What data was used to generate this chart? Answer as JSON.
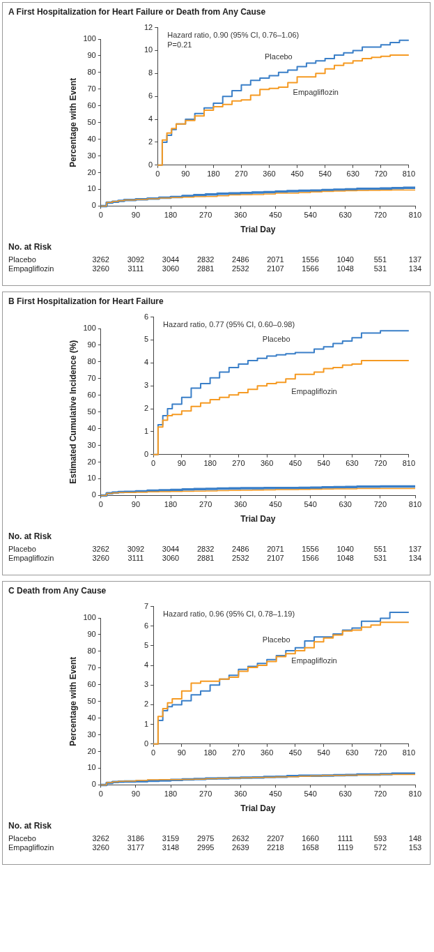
{
  "chart_data": [
    {
      "type": "step",
      "title": "A First Hospitalization for Heart Failure or Death from Any Cause",
      "xlabel": "Trial Day",
      "ylabel": "Percentage with Event",
      "xlim": [
        0,
        810
      ],
      "xticks": [
        0,
        90,
        180,
        270,
        360,
        450,
        540,
        630,
        720,
        810
      ],
      "ylim": [
        0,
        100
      ],
      "yticks": [
        0,
        10,
        20,
        30,
        40,
        50,
        60,
        70,
        80,
        90,
        100
      ],
      "x": [
        0,
        15,
        30,
        45,
        60,
        90,
        120,
        150,
        180,
        210,
        240,
        270,
        300,
        330,
        360,
        390,
        420,
        450,
        480,
        510,
        540,
        570,
        600,
        630,
        660,
        690,
        720,
        750,
        780,
        810
      ],
      "series": [
        {
          "color": "#3a7fc8",
          "values": [
            0,
            2.0,
            2.6,
            3.1,
            3.6,
            4.0,
            4.5,
            5.0,
            5.4,
            6.0,
            6.5,
            7.0,
            7.4,
            7.6,
            7.8,
            8.1,
            8.3,
            8.6,
            8.9,
            9.1,
            9.3,
            9.6,
            9.8,
            10.0,
            10.3,
            10.3,
            10.5,
            10.7,
            10.9,
            10.9
          ]
        },
        {
          "color": "#f59a23",
          "values": [
            0,
            2.2,
            2.8,
            3.2,
            3.6,
            3.9,
            4.3,
            4.8,
            5.1,
            5.3,
            5.6,
            5.7,
            6.1,
            6.6,
            6.7,
            6.8,
            7.2,
            7.7,
            7.7,
            8.0,
            8.4,
            8.7,
            8.9,
            9.1,
            9.3,
            9.4,
            9.5,
            9.6,
            9.6,
            9.6
          ]
        }
      ],
      "annotations": [
        "No. at Risk",
        "Placebo 3262 3092 3044 2832 2486 2071 1556 1040 551 137",
        "Empagliflozin 3260 3111 3060 2881 2532 2107 1566 1048 531 134"
      ]
    },
    {
      "type": "step",
      "xlim": [
        0,
        810
      ],
      "xticks": [
        0,
        90,
        180,
        270,
        360,
        450,
        540,
        630,
        720,
        810
      ],
      "ylim": [
        0,
        12
      ],
      "yticks": [
        0,
        2,
        4,
        6,
        8,
        10,
        12
      ],
      "x": [
        0,
        15,
        30,
        45,
        60,
        90,
        120,
        150,
        180,
        210,
        240,
        270,
        300,
        330,
        360,
        390,
        420,
        450,
        480,
        510,
        540,
        570,
        600,
        630,
        660,
        690,
        720,
        750,
        780,
        810
      ],
      "series": [
        {
          "name": "Placebo",
          "color": "#3a7fc8",
          "values": [
            0,
            2.0,
            2.6,
            3.1,
            3.6,
            4.0,
            4.5,
            5.0,
            5.4,
            6.0,
            6.5,
            7.0,
            7.4,
            7.6,
            7.8,
            8.1,
            8.3,
            8.6,
            8.9,
            9.1,
            9.3,
            9.6,
            9.8,
            10.0,
            10.3,
            10.3,
            10.5,
            10.7,
            10.9,
            10.9
          ]
        },
        {
          "name": "Empagliflozin",
          "color": "#f59a23",
          "values": [
            0,
            2.2,
            2.8,
            3.2,
            3.6,
            3.9,
            4.3,
            4.8,
            5.1,
            5.3,
            5.6,
            5.7,
            6.1,
            6.6,
            6.7,
            6.8,
            7.2,
            7.7,
            7.7,
            8.0,
            8.4,
            8.7,
            8.9,
            9.1,
            9.3,
            9.4,
            9.5,
            9.6,
            9.6,
            9.6
          ]
        }
      ],
      "annotations": [
        "Hazard ratio, 0.90 (95% CI, 0.76–1.06)",
        "P=0.21"
      ]
    },
    {
      "type": "step",
      "title": "B First Hospitalization for Heart Failure",
      "xlabel": "Trial Day",
      "ylabel": "Estimated Cumulative Incidence (%)",
      "xlim": [
        0,
        810
      ],
      "xticks": [
        0,
        90,
        180,
        270,
        360,
        450,
        540,
        630,
        720,
        810
      ],
      "ylim": [
        0,
        100
      ],
      "yticks": [
        0,
        10,
        20,
        30,
        40,
        50,
        60,
        70,
        80,
        90,
        100
      ],
      "x": [
        0,
        15,
        30,
        45,
        60,
        90,
        120,
        150,
        180,
        210,
        240,
        270,
        300,
        330,
        360,
        390,
        420,
        450,
        480,
        510,
        540,
        570,
        600,
        630,
        660,
        690,
        720,
        750,
        780,
        810
      ],
      "series": [
        {
          "color": "#3a7fc8",
          "values": [
            0,
            1.3,
            1.7,
            2.0,
            2.2,
            2.5,
            2.9,
            3.1,
            3.35,
            3.6,
            3.8,
            3.95,
            4.1,
            4.2,
            4.3,
            4.35,
            4.4,
            4.45,
            4.45,
            4.6,
            4.7,
            4.85,
            4.95,
            5.1,
            5.3,
            5.3,
            5.4,
            5.4,
            5.4,
            5.4
          ]
        },
        {
          "color": "#f59a23",
          "values": [
            0,
            1.2,
            1.5,
            1.7,
            1.75,
            1.9,
            2.1,
            2.25,
            2.4,
            2.5,
            2.6,
            2.7,
            2.85,
            3.0,
            3.1,
            3.15,
            3.3,
            3.5,
            3.5,
            3.6,
            3.75,
            3.8,
            3.9,
            3.95,
            4.1,
            4.1,
            4.1,
            4.1,
            4.1,
            4.1
          ]
        }
      ],
      "annotations": [
        "No. at Risk",
        "Placebo 3262 3092 3044 2832 2486 2071 1556 1040 551 137",
        "Empagliflozin 3260 3111 3060 2881 2532 2107 1566 1048 531 134"
      ]
    },
    {
      "type": "step",
      "xlim": [
        0,
        810
      ],
      "xticks": [
        0,
        90,
        180,
        270,
        360,
        450,
        540,
        630,
        720,
        810
      ],
      "ylim": [
        0,
        6
      ],
      "yticks": [
        0,
        1,
        2,
        3,
        4,
        5,
        6
      ],
      "x": [
        0,
        15,
        30,
        45,
        60,
        90,
        120,
        150,
        180,
        210,
        240,
        270,
        300,
        330,
        360,
        390,
        420,
        450,
        480,
        510,
        540,
        570,
        600,
        630,
        660,
        690,
        720,
        750,
        780,
        810
      ],
      "series": [
        {
          "name": "Placebo",
          "color": "#3a7fc8",
          "values": [
            0,
            1.3,
            1.7,
            2.0,
            2.2,
            2.5,
            2.9,
            3.1,
            3.35,
            3.6,
            3.8,
            3.95,
            4.1,
            4.2,
            4.3,
            4.35,
            4.4,
            4.45,
            4.45,
            4.6,
            4.7,
            4.85,
            4.95,
            5.1,
            5.3,
            5.3,
            5.4,
            5.4,
            5.4,
            5.4
          ]
        },
        {
          "name": "Empagliflozin",
          "color": "#f59a23",
          "values": [
            0,
            1.2,
            1.5,
            1.7,
            1.75,
            1.9,
            2.1,
            2.25,
            2.4,
            2.5,
            2.6,
            2.7,
            2.85,
            3.0,
            3.1,
            3.15,
            3.3,
            3.5,
            3.5,
            3.6,
            3.75,
            3.8,
            3.9,
            3.95,
            4.1,
            4.1,
            4.1,
            4.1,
            4.1,
            4.1
          ]
        }
      ],
      "annotations": [
        "Hazard ratio, 0.77 (95% CI, 0.60–0.98)"
      ]
    },
    {
      "type": "step",
      "title": "C Death from Any Cause",
      "xlabel": "Trial Day",
      "ylabel": "Percentage with Event",
      "xlim": [
        0,
        810
      ],
      "xticks": [
        0,
        90,
        180,
        270,
        360,
        450,
        540,
        630,
        720,
        810
      ],
      "ylim": [
        0,
        100
      ],
      "yticks": [
        0,
        10,
        20,
        30,
        40,
        50,
        60,
        70,
        80,
        90,
        100
      ],
      "x": [
        0,
        15,
        30,
        45,
        60,
        90,
        120,
        150,
        180,
        210,
        240,
        270,
        300,
        330,
        360,
        390,
        420,
        450,
        480,
        510,
        540,
        570,
        600,
        630,
        660,
        690,
        720,
        750,
        780,
        810
      ],
      "series": [
        {
          "color": "#3a7fc8",
          "values": [
            0,
            1.2,
            1.7,
            1.9,
            2.0,
            2.2,
            2.5,
            2.7,
            3.0,
            3.3,
            3.5,
            3.8,
            3.95,
            4.1,
            4.3,
            4.5,
            4.75,
            4.9,
            5.25,
            5.45,
            5.45,
            5.6,
            5.8,
            5.9,
            6.25,
            6.25,
            6.4,
            6.7,
            6.7,
            6.7
          ]
        },
        {
          "color": "#f59a23",
          "values": [
            0,
            1.4,
            1.8,
            2.1,
            2.3,
            2.7,
            3.1,
            3.2,
            3.2,
            3.3,
            3.4,
            3.7,
            3.9,
            4.0,
            4.2,
            4.45,
            4.6,
            4.75,
            4.9,
            5.2,
            5.4,
            5.55,
            5.75,
            5.8,
            5.95,
            6.05,
            6.2,
            6.2,
            6.2,
            6.2
          ]
        }
      ],
      "annotations": [
        "No. at Risk",
        "Placebo 3262 3186 3159 2975 2632 2207 1660 1111 593 148",
        "Empagliflozin 3260 3177 3148 2995 2639 2218 1658 1119 572 153"
      ]
    },
    {
      "type": "step",
      "xlim": [
        0,
        810
      ],
      "xticks": [
        0,
        90,
        180,
        270,
        360,
        450,
        540,
        630,
        720,
        810
      ],
      "ylim": [
        0,
        7
      ],
      "yticks": [
        0,
        1,
        2,
        3,
        4,
        5,
        6,
        7
      ],
      "x": [
        0,
        15,
        30,
        45,
        60,
        90,
        120,
        150,
        180,
        210,
        240,
        270,
        300,
        330,
        360,
        390,
        420,
        450,
        480,
        510,
        540,
        570,
        600,
        630,
        660,
        690,
        720,
        750,
        780,
        810
      ],
      "series": [
        {
          "name": "Placebo",
          "color": "#3a7fc8",
          "values": [
            0,
            1.2,
            1.7,
            1.9,
            2.0,
            2.2,
            2.5,
            2.7,
            3.0,
            3.3,
            3.5,
            3.8,
            3.95,
            4.1,
            4.3,
            4.5,
            4.75,
            4.9,
            5.25,
            5.45,
            5.45,
            5.6,
            5.8,
            5.9,
            6.25,
            6.25,
            6.4,
            6.7,
            6.7,
            6.7
          ]
        },
        {
          "name": "Empagliflozin",
          "color": "#f59a23",
          "values": [
            0,
            1.4,
            1.8,
            2.1,
            2.3,
            2.7,
            3.1,
            3.2,
            3.2,
            3.3,
            3.4,
            3.7,
            3.9,
            4.0,
            4.2,
            4.45,
            4.6,
            4.75,
            4.9,
            5.2,
            5.4,
            5.55,
            5.75,
            5.8,
            5.95,
            6.05,
            6.2,
            6.2,
            6.2,
            6.2
          ]
        }
      ],
      "annotations": [
        "Hazard ratio, 0.96 (95% CI, 0.78–1.19)"
      ]
    }
  ]
}
